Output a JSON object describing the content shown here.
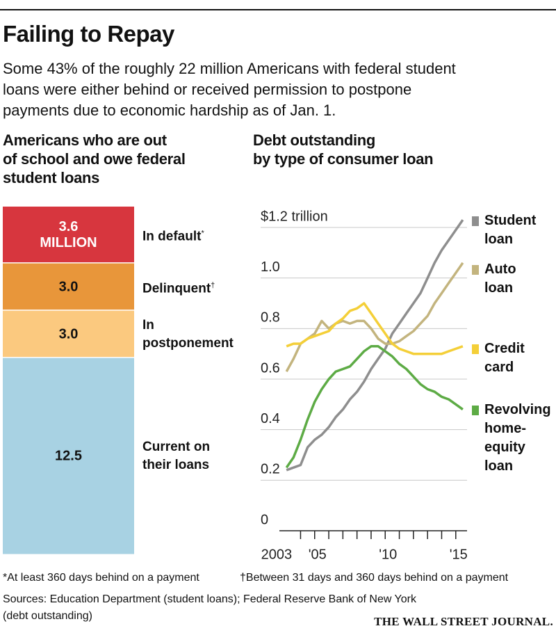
{
  "header": {
    "title": "Failing to Repay",
    "subtitle": "Some 43% of the roughly 22 million Americans with federal student\nloans were either behind or received permission to postpone\npayments due to economic hardship as of Jan. 1."
  },
  "chart_data": [
    {
      "type": "stacked-bar",
      "title": "Americans who are out\nof school and owe federal\nstudent loans",
      "series": [
        {
          "name": "In default",
          "note": "*",
          "color": "#d7363e",
          "values": [
            3.6
          ],
          "value_labels": [
            "3.6\nMILLION"
          ]
        },
        {
          "name": "Delinquent",
          "note": "†",
          "color": "#e8963a",
          "values": [
            3.0
          ],
          "value_labels": [
            "3.0"
          ]
        },
        {
          "name": "In\npostponement",
          "color": "#fbc97f",
          "values": [
            3.0
          ],
          "value_labels": [
            "3.0"
          ]
        },
        {
          "name": "Current on\ntheir loans",
          "color": "#a8d2e3",
          "values": [
            12.5
          ],
          "value_labels": [
            "12.5"
          ]
        }
      ]
    },
    {
      "type": "line",
      "title": "Debt outstanding\nby type of consumer loan",
      "x": [
        2003,
        2003.5,
        2004,
        2004.5,
        2005,
        2005.5,
        2006,
        2006.5,
        2007,
        2007.5,
        2008,
        2008.5,
        2009,
        2009.5,
        2010,
        2010.5,
        2011,
        2011.5,
        2012,
        2012.5,
        2013,
        2013.5,
        2014,
        2014.5,
        2015,
        2015.5
      ],
      "series": [
        {
          "name": "Student\nloan",
          "color": "#8e8e8e",
          "values": [
            0.24,
            0.25,
            0.26,
            0.33,
            0.36,
            0.38,
            0.41,
            0.45,
            0.48,
            0.52,
            0.55,
            0.59,
            0.64,
            0.68,
            0.72,
            0.78,
            0.82,
            0.86,
            0.9,
            0.94,
            1.0,
            1.06,
            1.11,
            1.15,
            1.19,
            1.23
          ]
        },
        {
          "name": "Auto\nloan",
          "color": "#c3b47e",
          "values": [
            0.63,
            0.68,
            0.74,
            0.76,
            0.78,
            0.83,
            0.8,
            0.82,
            0.83,
            0.82,
            0.83,
            0.83,
            0.8,
            0.76,
            0.74,
            0.74,
            0.75,
            0.77,
            0.79,
            0.82,
            0.85,
            0.9,
            0.94,
            0.98,
            1.02,
            1.06
          ]
        },
        {
          "name": "Credit\ncard",
          "color": "#f4cf38",
          "values": [
            0.73,
            0.74,
            0.74,
            0.76,
            0.77,
            0.78,
            0.79,
            0.82,
            0.84,
            0.87,
            0.88,
            0.9,
            0.86,
            0.82,
            0.78,
            0.74,
            0.72,
            0.71,
            0.7,
            0.7,
            0.7,
            0.7,
            0.7,
            0.71,
            0.72,
            0.73
          ]
        },
        {
          "name": "Revolving\nhome-\nequity\nloan",
          "color": "#5dab45",
          "values": [
            0.25,
            0.29,
            0.36,
            0.44,
            0.51,
            0.56,
            0.6,
            0.63,
            0.64,
            0.65,
            0.68,
            0.71,
            0.73,
            0.73,
            0.71,
            0.69,
            0.66,
            0.64,
            0.61,
            0.58,
            0.56,
            0.55,
            0.53,
            0.52,
            0.5,
            0.48
          ]
        }
      ],
      "xlim": [
        2002.5,
        2015.75
      ],
      "xticks": [
        {
          "value": 2003,
          "label": "2003"
        },
        {
          "value": 2005,
          "label": "'05"
        },
        {
          "value": 2010,
          "label": "'10"
        },
        {
          "value": 2015,
          "label": "'15"
        }
      ],
      "xminorticks": [
        2004,
        2005,
        2006,
        2007,
        2008,
        2009,
        2010,
        2011,
        2012,
        2013,
        2014,
        2015
      ],
      "ylim": [
        0,
        1.2
      ],
      "yticks": [
        0,
        0.2,
        0.4,
        0.6,
        0.8,
        {
          "value": 1,
          "label": "1.0"
        },
        {
          "value": 1.2,
          "label": "$1.2 trillion"
        }
      ],
      "grid": true
    }
  ],
  "footer": {
    "footnotes": [
      "*At least 360 days behind on a payment",
      "†Between 31 days and 360 days behind on a payment"
    ],
    "sources": "Sources: Education Department (student loans); Federal Reserve Bank of New York\n(debt outstanding)",
    "publisher": "THE WALL STREET JOURNAL."
  }
}
